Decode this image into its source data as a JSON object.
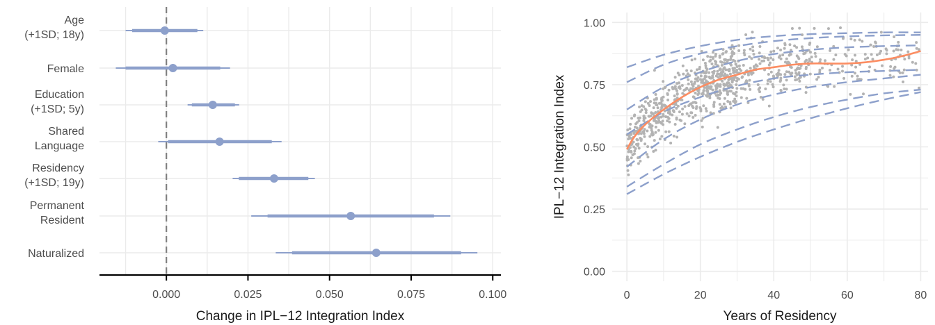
{
  "colors": {
    "estimate": "#8da0cb",
    "band_line": "#8da0cb",
    "smooth": "#fc8d62",
    "points": "#b3b3b3",
    "grid": "#ebebeb",
    "zero_line": "#808080",
    "axis": "#000000"
  },
  "chart_data": [
    {
      "type": "forest",
      "xlabel": "Change in IPL−12 Integration Index",
      "ylabel": "",
      "xlim": [
        -0.0205,
        0.1025
      ],
      "xticks": [
        "0.000",
        "0.025",
        "0.050",
        "0.075",
        "0.100"
      ],
      "xtick_values": [
        0,
        0.025,
        0.05,
        0.075,
        0.1
      ],
      "reference_line": 0,
      "grid": true,
      "rows": [
        {
          "label": [
            "Age",
            "(+1SD; 18y)"
          ],
          "estimate": -0.0005,
          "ci_outer": [
            -0.0125,
            0.0113
          ],
          "ci_inner": [
            -0.0105,
            0.0095
          ]
        },
        {
          "label": [
            "Female"
          ],
          "estimate": 0.002,
          "ci_outer": [
            -0.0155,
            0.0195
          ],
          "ci_inner": [
            -0.0125,
            0.0165
          ]
        },
        {
          "label": [
            "Education",
            "(+1SD; 5y)"
          ],
          "estimate": 0.0142,
          "ci_outer": [
            0.0065,
            0.0223
          ],
          "ci_inner": [
            0.0078,
            0.021
          ]
        },
        {
          "label": [
            "Shared",
            "Language"
          ],
          "estimate": 0.0163,
          "ci_outer": [
            -0.0025,
            0.0353
          ],
          "ci_inner": [
            0.0005,
            0.0323
          ]
        },
        {
          "label": [
            "Residency",
            "(+1SD; 19y)"
          ],
          "estimate": 0.033,
          "ci_outer": [
            0.0203,
            0.0455
          ],
          "ci_inner": [
            0.0222,
            0.0435
          ]
        },
        {
          "label": [
            "Permanent",
            "Resident"
          ],
          "estimate": 0.0565,
          "ci_outer": [
            0.026,
            0.087
          ],
          "ci_inner": [
            0.031,
            0.082
          ]
        },
        {
          "label": [
            "Naturalized"
          ],
          "estimate": 0.0643,
          "ci_outer": [
            0.0335,
            0.0953
          ],
          "ci_inner": [
            0.0385,
            0.0903
          ]
        }
      ]
    },
    {
      "type": "scatter",
      "xlabel": "Years of Residency",
      "ylabel": "IPL−12 Integration Index",
      "xlim": [
        -4,
        82
      ],
      "ylim": [
        -0.04,
        1.04
      ],
      "xticks": [
        "0",
        "20",
        "40",
        "60",
        "80"
      ],
      "xtick_values": [
        0,
        20,
        40,
        60,
        80
      ],
      "yticks": [
        "0.00",
        "0.25",
        "0.50",
        "0.75",
        "1.00"
      ],
      "ytick_values": [
        0,
        0.25,
        0.5,
        0.75,
        1.0
      ],
      "grid": true,
      "points": {
        "count": 900,
        "x_range": [
          0,
          80
        ],
        "y_range": [
          0.2,
          1.0
        ]
      },
      "smooth": {
        "x": [
          0,
          2,
          5,
          10,
          15,
          20,
          25,
          30,
          35,
          40,
          45,
          50,
          55,
          60,
          65,
          70,
          75,
          80
        ],
        "y": [
          0.49,
          0.54,
          0.59,
          0.65,
          0.7,
          0.74,
          0.77,
          0.79,
          0.81,
          0.82,
          0.83,
          0.835,
          0.835,
          0.835,
          0.84,
          0.85,
          0.865,
          0.885
        ]
      },
      "dashed_lines": [
        {
          "x": [
            0,
            10,
            20,
            30,
            40,
            50,
            60,
            70,
            80
          ],
          "y": [
            0.82,
            0.87,
            0.905,
            0.93,
            0.945,
            0.953,
            0.957,
            0.96,
            0.96
          ]
        },
        {
          "x": [
            0,
            10,
            20,
            30,
            40,
            50,
            60,
            70,
            80
          ],
          "y": [
            0.76,
            0.83,
            0.875,
            0.905,
            0.925,
            0.937,
            0.944,
            0.948,
            0.95
          ]
        },
        {
          "x": [
            0,
            10,
            20,
            30,
            40,
            50,
            60,
            70,
            80
          ],
          "y": [
            0.65,
            0.74,
            0.8,
            0.845,
            0.873,
            0.89,
            0.9,
            0.905,
            0.908
          ]
        },
        {
          "x": [
            0,
            10,
            20,
            30,
            40,
            50,
            60,
            70,
            80
          ],
          "y": [
            0.55,
            0.64,
            0.7,
            0.745,
            0.775,
            0.79,
            0.8,
            0.805,
            0.81
          ]
        },
        {
          "x": [
            0,
            10,
            20,
            30,
            40,
            50,
            60,
            70,
            80
          ],
          "y": [
            0.42,
            0.53,
            0.61,
            0.67,
            0.71,
            0.74,
            0.76,
            0.775,
            0.79
          ]
        },
        {
          "x": [
            0,
            10,
            20,
            30,
            40,
            50,
            60,
            70,
            80
          ],
          "y": [
            0.34,
            0.43,
            0.51,
            0.57,
            0.62,
            0.66,
            0.69,
            0.715,
            0.73
          ]
        },
        {
          "x": [
            0,
            10,
            20,
            30,
            40,
            50,
            60,
            70,
            80
          ],
          "y": [
            0.31,
            0.39,
            0.46,
            0.52,
            0.57,
            0.615,
            0.655,
            0.69,
            0.72
          ]
        }
      ]
    }
  ]
}
